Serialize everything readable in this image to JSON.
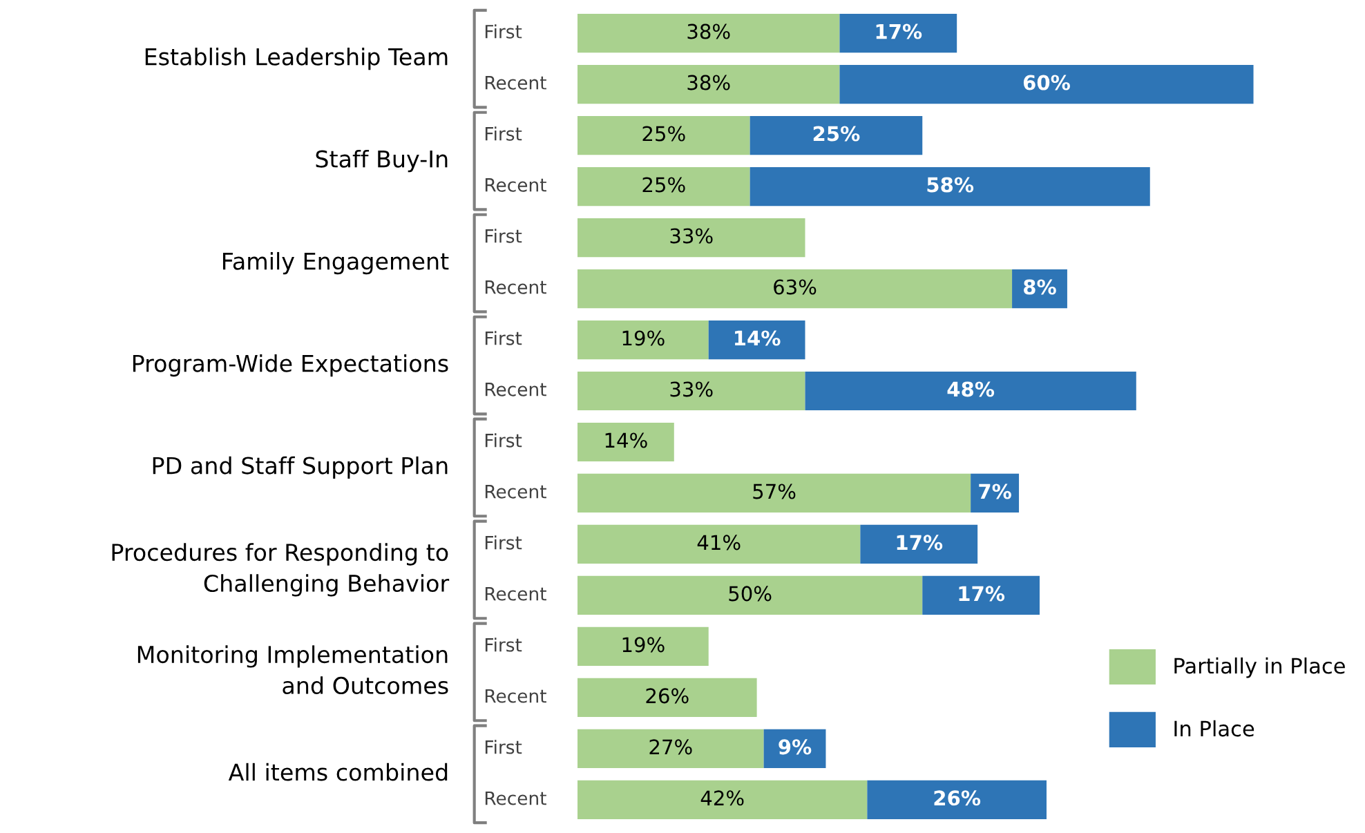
{
  "chart_data": {
    "type": "bar",
    "orientation": "horizontal",
    "stacked": true,
    "legend": "bottom right",
    "categories": [
      "First",
      "Recent",
      "First",
      "Recent",
      "First",
      "Recent",
      "First",
      "Recent",
      "First",
      "Recent",
      "First",
      "Recent",
      "First",
      "Recent",
      "First",
      "Recent"
    ],
    "annotations": [
      "Establish Leadership Team",
      "Staff Buy-In",
      "Family Engagement",
      "Program-Wide Expectations",
      "PD and Staff Support Plan",
      "Procedures for Responding to\nChallenging Behavior",
      "Monitoring Implementation\nand Outcomes",
      "All items combined"
    ],
    "series": [
      {
        "name": "Partially in Place",
        "color": "#a9d18e",
        "values": [
          38,
          38,
          25,
          25,
          33,
          63,
          19,
          33,
          14,
          57,
          41,
          50,
          19,
          26,
          27,
          42
        ],
        "value_labels": [
          "38%",
          "38%",
          "25%",
          "25%",
          "33%",
          "63%",
          "19%",
          "33%",
          "14%",
          "57%",
          "41%",
          "50%",
          "19%",
          "26%",
          "27%",
          "42%"
        ]
      },
      {
        "name": "In Place",
        "color": "#2e75b6",
        "values": [
          17,
          60,
          25,
          58,
          null,
          8,
          14,
          48,
          null,
          7,
          17,
          17,
          null,
          null,
          9,
          26
        ],
        "value_labels": [
          "17%",
          "60%",
          "25%",
          "58%",
          null,
          "8%",
          "14%",
          "48%",
          null,
          "7%",
          "17%",
          "17%",
          null,
          null,
          "9%",
          "26%"
        ]
      }
    ]
  }
}
